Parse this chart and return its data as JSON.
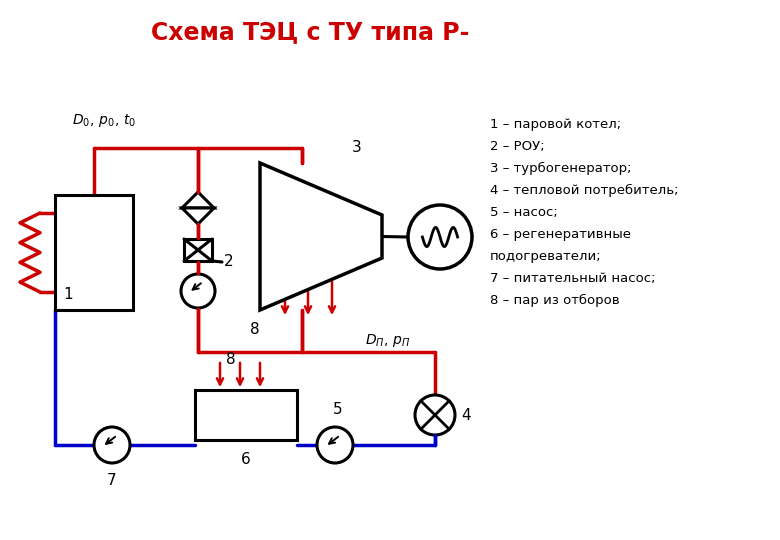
{
  "title": "Схема ТЭЦ с ТУ типа Р-",
  "title_color": "#cc0000",
  "title_fontsize": 17,
  "legend_lines": [
    "1 – паровой котел;",
    "2 – РОУ;",
    "3 – турбогенератор;",
    "4 – тепловой потребитель;",
    "5 – насос;",
    "6 – регенеративные",
    "подогреватели;",
    "7 – питательный насос;",
    "8 – пар из отборов"
  ],
  "red": "#cc0000",
  "blue": "#0000cc",
  "black": "#000000",
  "bg": "#ffffff",
  "lw_pipe": 2.5,
  "lw_comp": 2.2
}
